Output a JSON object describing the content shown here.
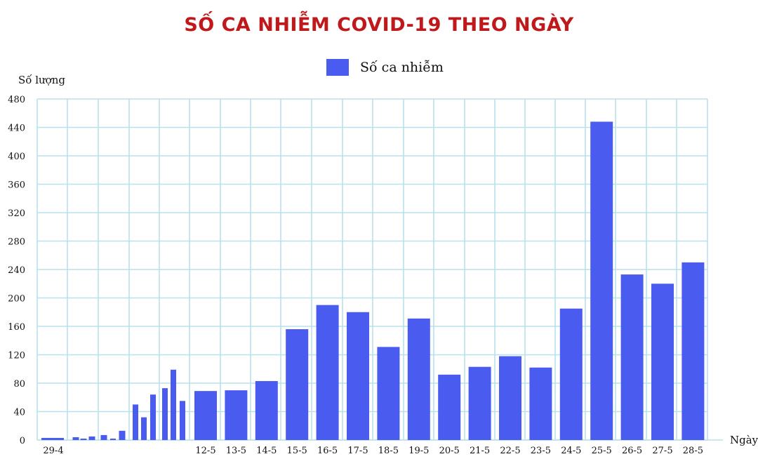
{
  "chart_data": {
    "type": "bar",
    "title": "SỐ CA NHIỄM COVID-19 THEO NGÀY",
    "ylabel": "Số lượng",
    "xlabel": "Ngày",
    "ylim": [
      0,
      480
    ],
    "yticks": [
      0,
      40,
      80,
      120,
      160,
      200,
      240,
      280,
      320,
      360,
      400,
      440,
      480
    ],
    "grid": true,
    "legend_position": "top-center",
    "colors": {
      "bar": "#4a5cf0",
      "grid": "#b7e1ec",
      "title": "#c0191c"
    },
    "series": [
      {
        "name": "Số ca nhiễm",
        "values": [
          3,
          4,
          2,
          5,
          7,
          2,
          13,
          50,
          32,
          64,
          73,
          99,
          55,
          69,
          70,
          83,
          156,
          190,
          180,
          131,
          171,
          92,
          103,
          118,
          102,
          185,
          448,
          233,
          220,
          250
        ]
      }
    ],
    "x_tick_labels": [
      "29-4",
      "",
      "",
      "",
      "",
      "",
      "",
      "",
      "",
      "",
      "",
      "",
      "",
      "12-5",
      "13-5",
      "14-5",
      "15-5",
      "16-5",
      "17-5",
      "18-5",
      "19-5",
      "20-5",
      "21-5",
      "22-5",
      "23-5",
      "24-5",
      "25-5",
      "26-5",
      "27-5",
      "28-5"
    ]
  }
}
